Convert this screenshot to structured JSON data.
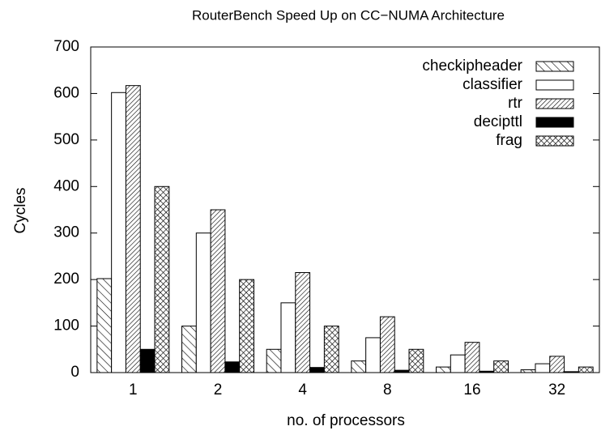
{
  "chart_data": {
    "type": "bar",
    "title": "RouterBench Speed Up on CC−NUMA Architecture",
    "xlabel": "no. of processors",
    "ylabel": "Cycles",
    "categories": [
      "1",
      "2",
      "4",
      "8",
      "16",
      "32"
    ],
    "series": [
      {
        "name": "checkipheader",
        "color": "#000000",
        "pattern": "hatch-back",
        "values": [
          202,
          100,
          50,
          25,
          12,
          6
        ]
      },
      {
        "name": "classifier",
        "color": "#000000",
        "pattern": "none",
        "values": [
          602,
          300,
          150,
          75,
          38,
          19
        ]
      },
      {
        "name": "rtr",
        "color": "#000000",
        "pattern": "hatch-forward",
        "values": [
          617,
          350,
          215,
          120,
          65,
          35
        ]
      },
      {
        "name": "decipttl",
        "color": "#000000",
        "pattern": "solid",
        "values": [
          50,
          23,
          11,
          5,
          3,
          2
        ]
      },
      {
        "name": "frag",
        "color": "#000000",
        "pattern": "crosshatch",
        "values": [
          400,
          200,
          100,
          50,
          25,
          12
        ]
      }
    ],
    "ylim": [
      0,
      700
    ],
    "yticks": [
      0,
      100,
      200,
      300,
      400,
      500,
      600,
      700
    ],
    "grid": false,
    "legend": "top-right"
  }
}
